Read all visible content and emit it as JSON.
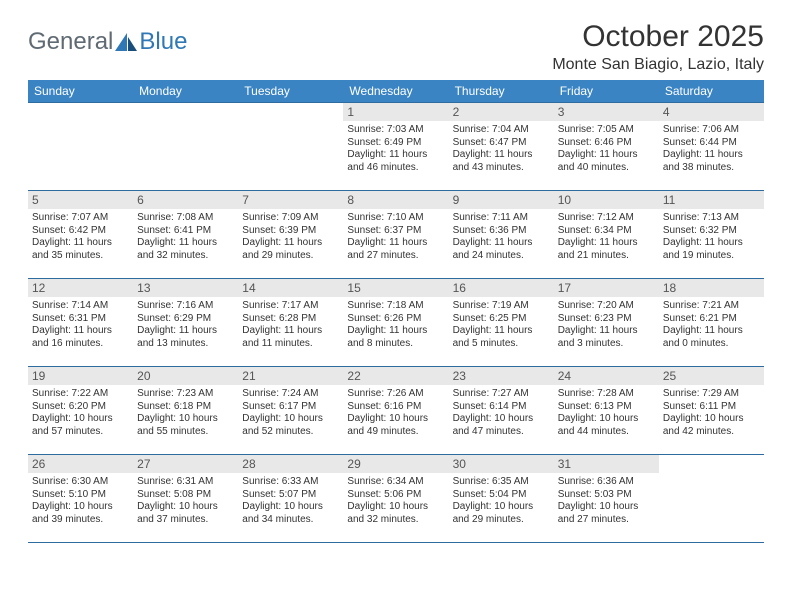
{
  "logo": {
    "text1": "General",
    "text2": "Blue"
  },
  "title": "October 2025",
  "location": "Monte San Biagio, Lazio, Italy",
  "weekdays": [
    "Sunday",
    "Monday",
    "Tuesday",
    "Wednesday",
    "Thursday",
    "Friday",
    "Saturday"
  ],
  "colors": {
    "header_bg": "#3a84c4",
    "week_border": "#2e6ca0",
    "daynum_bg": "#e8e8e8",
    "logo_gray": "#5f6a72",
    "logo_blue": "#2f78b5"
  },
  "grid": [
    [
      null,
      null,
      null,
      {
        "n": "1",
        "sr": "Sunrise: 7:03 AM",
        "ss": "Sunset: 6:49 PM",
        "d1": "Daylight: 11 hours",
        "d2": "and 46 minutes."
      },
      {
        "n": "2",
        "sr": "Sunrise: 7:04 AM",
        "ss": "Sunset: 6:47 PM",
        "d1": "Daylight: 11 hours",
        "d2": "and 43 minutes."
      },
      {
        "n": "3",
        "sr": "Sunrise: 7:05 AM",
        "ss": "Sunset: 6:46 PM",
        "d1": "Daylight: 11 hours",
        "d2": "and 40 minutes."
      },
      {
        "n": "4",
        "sr": "Sunrise: 7:06 AM",
        "ss": "Sunset: 6:44 PM",
        "d1": "Daylight: 11 hours",
        "d2": "and 38 minutes."
      }
    ],
    [
      {
        "n": "5",
        "sr": "Sunrise: 7:07 AM",
        "ss": "Sunset: 6:42 PM",
        "d1": "Daylight: 11 hours",
        "d2": "and 35 minutes."
      },
      {
        "n": "6",
        "sr": "Sunrise: 7:08 AM",
        "ss": "Sunset: 6:41 PM",
        "d1": "Daylight: 11 hours",
        "d2": "and 32 minutes."
      },
      {
        "n": "7",
        "sr": "Sunrise: 7:09 AM",
        "ss": "Sunset: 6:39 PM",
        "d1": "Daylight: 11 hours",
        "d2": "and 29 minutes."
      },
      {
        "n": "8",
        "sr": "Sunrise: 7:10 AM",
        "ss": "Sunset: 6:37 PM",
        "d1": "Daylight: 11 hours",
        "d2": "and 27 minutes."
      },
      {
        "n": "9",
        "sr": "Sunrise: 7:11 AM",
        "ss": "Sunset: 6:36 PM",
        "d1": "Daylight: 11 hours",
        "d2": "and 24 minutes."
      },
      {
        "n": "10",
        "sr": "Sunrise: 7:12 AM",
        "ss": "Sunset: 6:34 PM",
        "d1": "Daylight: 11 hours",
        "d2": "and 21 minutes."
      },
      {
        "n": "11",
        "sr": "Sunrise: 7:13 AM",
        "ss": "Sunset: 6:32 PM",
        "d1": "Daylight: 11 hours",
        "d2": "and 19 minutes."
      }
    ],
    [
      {
        "n": "12",
        "sr": "Sunrise: 7:14 AM",
        "ss": "Sunset: 6:31 PM",
        "d1": "Daylight: 11 hours",
        "d2": "and 16 minutes."
      },
      {
        "n": "13",
        "sr": "Sunrise: 7:16 AM",
        "ss": "Sunset: 6:29 PM",
        "d1": "Daylight: 11 hours",
        "d2": "and 13 minutes."
      },
      {
        "n": "14",
        "sr": "Sunrise: 7:17 AM",
        "ss": "Sunset: 6:28 PM",
        "d1": "Daylight: 11 hours",
        "d2": "and 11 minutes."
      },
      {
        "n": "15",
        "sr": "Sunrise: 7:18 AM",
        "ss": "Sunset: 6:26 PM",
        "d1": "Daylight: 11 hours",
        "d2": "and 8 minutes."
      },
      {
        "n": "16",
        "sr": "Sunrise: 7:19 AM",
        "ss": "Sunset: 6:25 PM",
        "d1": "Daylight: 11 hours",
        "d2": "and 5 minutes."
      },
      {
        "n": "17",
        "sr": "Sunrise: 7:20 AM",
        "ss": "Sunset: 6:23 PM",
        "d1": "Daylight: 11 hours",
        "d2": "and 3 minutes."
      },
      {
        "n": "18",
        "sr": "Sunrise: 7:21 AM",
        "ss": "Sunset: 6:21 PM",
        "d1": "Daylight: 11 hours",
        "d2": "and 0 minutes."
      }
    ],
    [
      {
        "n": "19",
        "sr": "Sunrise: 7:22 AM",
        "ss": "Sunset: 6:20 PM",
        "d1": "Daylight: 10 hours",
        "d2": "and 57 minutes."
      },
      {
        "n": "20",
        "sr": "Sunrise: 7:23 AM",
        "ss": "Sunset: 6:18 PM",
        "d1": "Daylight: 10 hours",
        "d2": "and 55 minutes."
      },
      {
        "n": "21",
        "sr": "Sunrise: 7:24 AM",
        "ss": "Sunset: 6:17 PM",
        "d1": "Daylight: 10 hours",
        "d2": "and 52 minutes."
      },
      {
        "n": "22",
        "sr": "Sunrise: 7:26 AM",
        "ss": "Sunset: 6:16 PM",
        "d1": "Daylight: 10 hours",
        "d2": "and 49 minutes."
      },
      {
        "n": "23",
        "sr": "Sunrise: 7:27 AM",
        "ss": "Sunset: 6:14 PM",
        "d1": "Daylight: 10 hours",
        "d2": "and 47 minutes."
      },
      {
        "n": "24",
        "sr": "Sunrise: 7:28 AM",
        "ss": "Sunset: 6:13 PM",
        "d1": "Daylight: 10 hours",
        "d2": "and 44 minutes."
      },
      {
        "n": "25",
        "sr": "Sunrise: 7:29 AM",
        "ss": "Sunset: 6:11 PM",
        "d1": "Daylight: 10 hours",
        "d2": "and 42 minutes."
      }
    ],
    [
      {
        "n": "26",
        "sr": "Sunrise: 6:30 AM",
        "ss": "Sunset: 5:10 PM",
        "d1": "Daylight: 10 hours",
        "d2": "and 39 minutes."
      },
      {
        "n": "27",
        "sr": "Sunrise: 6:31 AM",
        "ss": "Sunset: 5:08 PM",
        "d1": "Daylight: 10 hours",
        "d2": "and 37 minutes."
      },
      {
        "n": "28",
        "sr": "Sunrise: 6:33 AM",
        "ss": "Sunset: 5:07 PM",
        "d1": "Daylight: 10 hours",
        "d2": "and 34 minutes."
      },
      {
        "n": "29",
        "sr": "Sunrise: 6:34 AM",
        "ss": "Sunset: 5:06 PM",
        "d1": "Daylight: 10 hours",
        "d2": "and 32 minutes."
      },
      {
        "n": "30",
        "sr": "Sunrise: 6:35 AM",
        "ss": "Sunset: 5:04 PM",
        "d1": "Daylight: 10 hours",
        "d2": "and 29 minutes."
      },
      {
        "n": "31",
        "sr": "Sunrise: 6:36 AM",
        "ss": "Sunset: 5:03 PM",
        "d1": "Daylight: 10 hours",
        "d2": "and 27 minutes."
      },
      null
    ]
  ]
}
